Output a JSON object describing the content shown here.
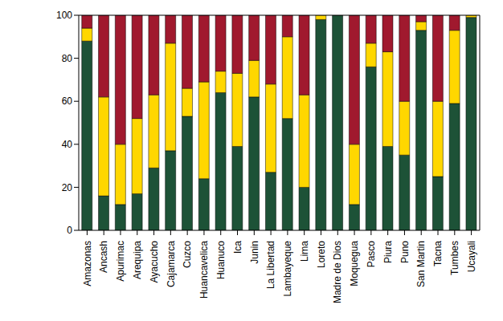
{
  "chart_data": {
    "type": "bar",
    "stacked": true,
    "grid": false,
    "categories": [
      "Amazonas",
      "Ancash",
      "Apurimac",
      "Arequipa",
      "Ayacucho",
      "Cajamarca",
      "Cuzco",
      "Huancavelica",
      "Huanuco",
      "Ica",
      "Junin",
      "La Libertad",
      "Lambayeque",
      "Lima",
      "Loreto",
      "Madre de Dios",
      "Moquegua",
      "Pasco",
      "Piura",
      "Puno",
      "San Martin",
      "Tacna",
      "Tumbes",
      "Ucayali"
    ],
    "series": [
      {
        "color": "#1d5237",
        "values": [
          88,
          16,
          12,
          17,
          29,
          37,
          53,
          24,
          64,
          39,
          62,
          27,
          52,
          20,
          98,
          100,
          12,
          76,
          39,
          35,
          93,
          25,
          59,
          99
        ]
      },
      {
        "color": "#ffd700",
        "values": [
          6,
          46,
          28,
          35,
          34,
          50,
          13,
          45,
          10,
          34,
          17,
          41,
          38,
          43,
          2,
          0,
          28,
          11,
          44,
          25,
          4,
          35,
          34,
          1
        ]
      },
      {
        "color": "#a0192e",
        "values": [
          6,
          38,
          60,
          48,
          37,
          13,
          34,
          31,
          26,
          27,
          21,
          32,
          10,
          37,
          0,
          0,
          60,
          13,
          17,
          40,
          3,
          40,
          7,
          0
        ]
      }
    ],
    "ylim": [
      0,
      100
    ],
    "yticks": [
      0,
      20,
      40,
      60,
      80,
      100
    ]
  }
}
